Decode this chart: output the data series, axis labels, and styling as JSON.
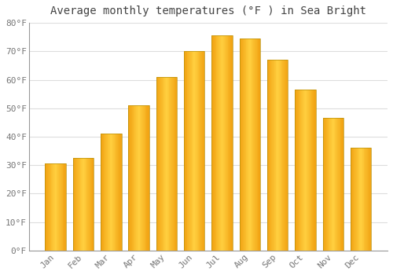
{
  "title": "Average monthly temperatures (°F ) in Sea Bright",
  "months": [
    "Jan",
    "Feb",
    "Mar",
    "Apr",
    "May",
    "Jun",
    "Jul",
    "Aug",
    "Sep",
    "Oct",
    "Nov",
    "Dec"
  ],
  "values": [
    30.5,
    32.5,
    41.0,
    51.0,
    61.0,
    70.0,
    75.5,
    74.5,
    67.0,
    56.5,
    46.5,
    36.0
  ],
  "bar_color_dark": "#F0A010",
  "bar_color_light": "#FFD040",
  "bar_edge_color": "#C8A000",
  "background_color": "#FFFFFF",
  "plot_bg_color": "#FFFFFF",
  "grid_color": "#DDDDDD",
  "ylim": [
    0,
    80
  ],
  "yticks": [
    0,
    10,
    20,
    30,
    40,
    50,
    60,
    70,
    80
  ],
  "ytick_labels": [
    "0°F",
    "10°F",
    "20°F",
    "30°F",
    "40°F",
    "50°F",
    "60°F",
    "70°F",
    "80°F"
  ],
  "title_fontsize": 10,
  "tick_fontsize": 8,
  "title_color": "#444444",
  "tick_color": "#777777",
  "bar_width": 0.75
}
